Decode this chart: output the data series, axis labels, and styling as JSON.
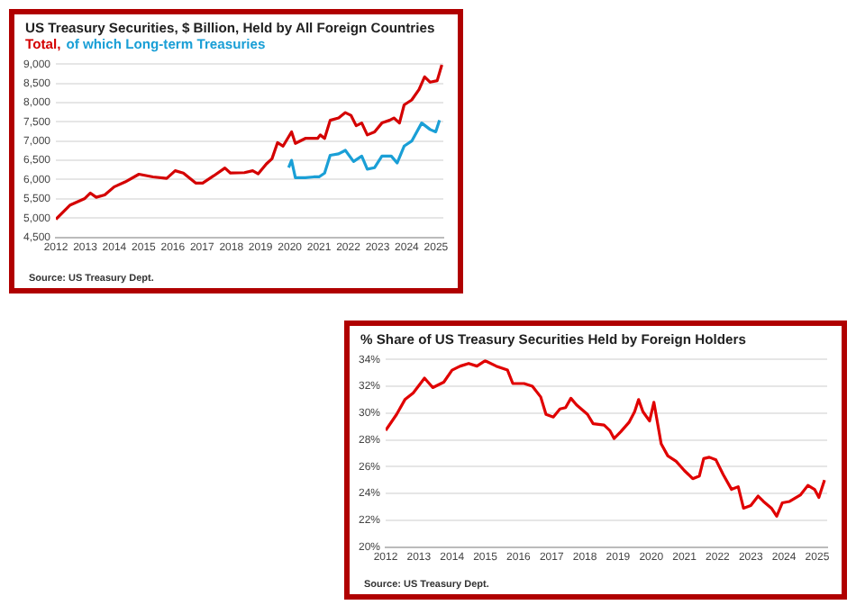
{
  "chart_data": [
    {
      "type": "line",
      "title": "US Treasury Securities, $ Billion, Held by All Foreign Countries",
      "legend": "top left",
      "grid": "y",
      "xlim": [
        2012,
        2025.25
      ],
      "xticks": [
        2012,
        2013,
        2014,
        2015,
        2016,
        2017,
        2018,
        2019,
        2020,
        2021,
        2022,
        2023,
        2024,
        2025
      ],
      "ylim": [
        4500,
        9000
      ],
      "yticks": [
        {
          "value": 4500,
          "label": "4,500"
        },
        {
          "value": 5000,
          "label": "5,000"
        },
        {
          "value": 5500,
          "label": "5,500"
        },
        {
          "value": 6000,
          "label": "6,000"
        },
        {
          "value": 6500,
          "label": "6,500"
        },
        {
          "value": 7000,
          "label": "7,000"
        },
        {
          "value": 7500,
          "label": "7,500"
        },
        {
          "value": 8000,
          "label": "8,000"
        },
        {
          "value": 8500,
          "label": "8,500"
        },
        {
          "value": 9000,
          "label": "9,000"
        }
      ],
      "annotations": [
        "Source: US Treasury  Dept."
      ],
      "series": [
        {
          "name": "Total,",
          "color": "#d40000",
          "x": [
            2012,
            2012.49,
            2012.99,
            2013.18,
            2013.38,
            2013.67,
            2013.99,
            2014.37,
            2014.84,
            2015.32,
            2015.79,
            2016.08,
            2016.36,
            2016.78,
            2017.02,
            2017.4,
            2017.78,
            2017.97,
            2018.45,
            2018.73,
            2018.92,
            2019.2,
            2019.39,
            2019.58,
            2019.77,
            2020.06,
            2020.19,
            2020.53,
            2020.95,
            2021.04,
            2021.19,
            2021.38,
            2021.67,
            2021.9,
            2022.09,
            2022.27,
            2022.46,
            2022.65,
            2022.9,
            2023.15,
            2023.41,
            2023.56,
            2023.75,
            2023.91,
            2024.17,
            2024.42,
            2024.61,
            2024.8,
            2025.04,
            2025.2
          ],
          "values": [
            4970,
            5340,
            5510,
            5650,
            5540,
            5600,
            5810,
            5940,
            6140,
            6070,
            6030,
            6230,
            6170,
            5910,
            5910,
            6100,
            6300,
            6170,
            6180,
            6230,
            6150,
            6410,
            6540,
            6960,
            6870,
            7240,
            6940,
            7070,
            7070,
            7160,
            7070,
            7540,
            7600,
            7740,
            7670,
            7400,
            7470,
            7160,
            7240,
            7470,
            7540,
            7600,
            7470,
            7940,
            8070,
            8340,
            8670,
            8530,
            8570,
            8980
          ]
        },
        {
          "name": "of which Long-term Treasuries",
          "color": "#1a9fd6",
          "x": [
            2019.96,
            2020.06,
            2020.19,
            2020.53,
            2020.82,
            2021.0,
            2021.19,
            2021.38,
            2021.67,
            2021.9,
            2022.18,
            2022.46,
            2022.65,
            2022.9,
            2023.15,
            2023.47,
            2023.67,
            2023.91,
            2024.17,
            2024.51,
            2024.8,
            2024.99,
            2025.12
          ],
          "values": [
            6310,
            6500,
            6050,
            6050,
            6070,
            6070,
            6170,
            6630,
            6670,
            6760,
            6470,
            6610,
            6270,
            6310,
            6610,
            6610,
            6430,
            6870,
            7000,
            7470,
            7300,
            7240,
            7540
          ]
        }
      ]
    },
    {
      "type": "line",
      "title": "% Share of US Treasury Securities Held by Foreign Holders",
      "grid": "y",
      "xlim": [
        2012,
        2025.3
      ],
      "xticks": [
        2012,
        2013,
        2014,
        2015,
        2016,
        2017,
        2018,
        2019,
        2020,
        2021,
        2022,
        2023,
        2024,
        2025
      ],
      "ylim": [
        20,
        34
      ],
      "yticks": [
        {
          "value": 20,
          "label": "20%"
        },
        {
          "value": 22,
          "label": "22%"
        },
        {
          "value": 24,
          "label": "24%"
        },
        {
          "value": 26,
          "label": "26%"
        },
        {
          "value": 28,
          "label": "28%"
        },
        {
          "value": 30,
          "label": "30%"
        },
        {
          "value": 32,
          "label": "32%"
        },
        {
          "value": 34,
          "label": "34%"
        }
      ],
      "annotations": [
        "Source: US Treasury  Dept."
      ],
      "series": [
        {
          "color": "#e00000",
          "x": [
            2012.0,
            2012.33,
            2012.58,
            2012.83,
            2013.17,
            2013.42,
            2013.75,
            2014.0,
            2014.25,
            2014.5,
            2014.75,
            2015.0,
            2015.33,
            2015.67,
            2015.83,
            2016.17,
            2016.42,
            2016.67,
            2016.83,
            2017.05,
            2017.25,
            2017.42,
            2017.58,
            2017.75,
            2018.08,
            2018.25,
            2018.58,
            2018.75,
            2018.88,
            2019.08,
            2019.33,
            2019.5,
            2019.62,
            2019.75,
            2019.95,
            2020.08,
            2020.3,
            2020.5,
            2020.75,
            2021.0,
            2021.25,
            2021.45,
            2021.58,
            2021.75,
            2021.95,
            2022.17,
            2022.42,
            2022.62,
            2022.78,
            2023.0,
            2023.22,
            2023.38,
            2023.62,
            2023.78,
            2023.95,
            2024.17,
            2024.5,
            2024.72,
            2024.92,
            2025.05,
            2025.22
          ],
          "values": [
            28.7,
            29.9,
            31.0,
            31.5,
            32.6,
            31.9,
            32.3,
            33.2,
            33.5,
            33.7,
            33.5,
            33.9,
            33.5,
            33.2,
            32.2,
            32.2,
            32.0,
            31.2,
            29.9,
            29.7,
            30.3,
            30.4,
            31.1,
            30.6,
            29.9,
            29.2,
            29.1,
            28.7,
            28.1,
            28.6,
            29.3,
            30.1,
            31.0,
            30.1,
            29.4,
            30.8,
            27.7,
            26.8,
            26.4,
            25.7,
            25.1,
            25.3,
            26.6,
            26.7,
            26.5,
            25.4,
            24.3,
            24.5,
            22.9,
            23.1,
            23.8,
            23.4,
            22.9,
            22.3,
            23.3,
            23.4,
            23.9,
            24.6,
            24.3,
            23.7,
            25.0
          ]
        }
      ]
    }
  ]
}
